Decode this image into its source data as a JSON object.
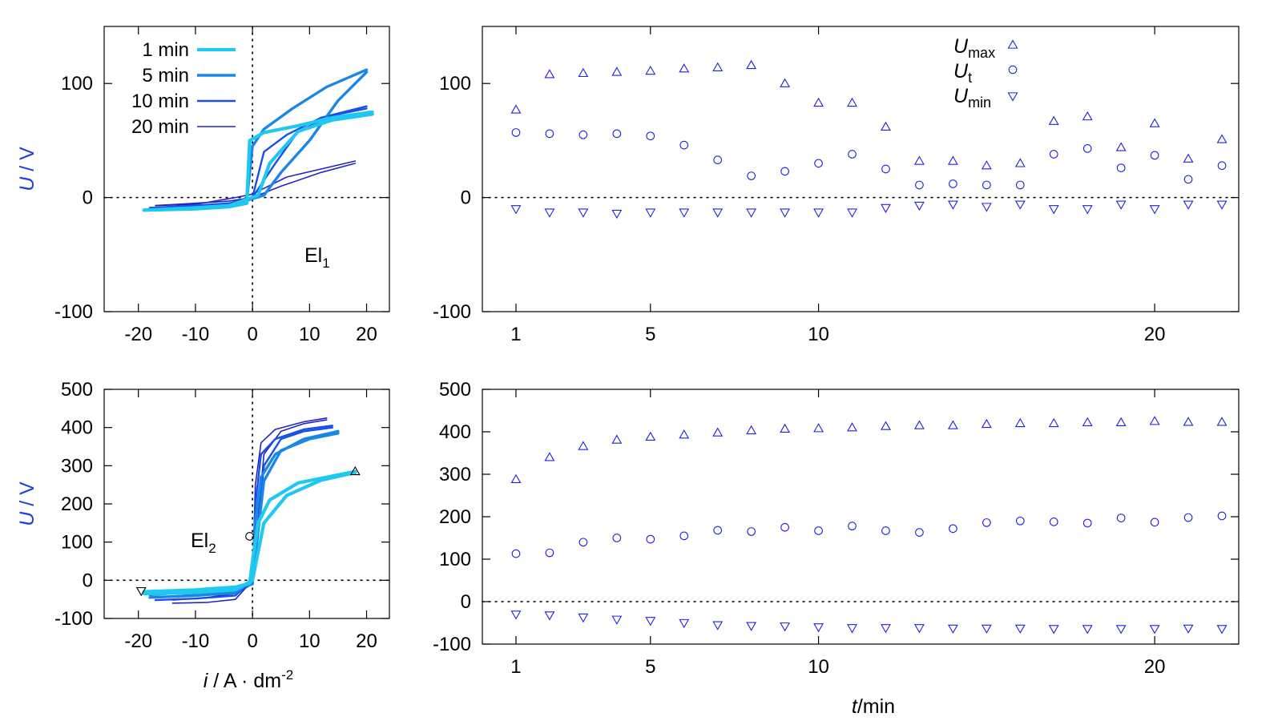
{
  "colors": {
    "c1": "#1ec8f0",
    "c5": "#1a86e8",
    "c10": "#1650e8",
    "c20": "#2424c4",
    "marker": "#2020e0",
    "ylabel": "#1f3fe0"
  },
  "labels": {
    "ylabel_u": "U",
    "ylabel_unit": " / V",
    "xlabel_i": "i",
    "xlabel_unit": " / A · dm",
    "xlabel_exp": "-2",
    "xlabel_t": "t",
    "xlabel_t_unit": "/min",
    "el1_base": "El",
    "el1_sub": "1",
    "el2_base": "El",
    "el2_sub": "2",
    "umax_base": "U",
    "umax_sub": "max",
    "ut_base": "U",
    "ut_sub": "t",
    "umin_base": "U",
    "umin_sub": "min"
  },
  "chart_data": [
    {
      "id": "el1-hysteresis",
      "type": "line",
      "xlim": [
        -26,
        24
      ],
      "ylim": [
        -100,
        150
      ],
      "xticks": [
        "-20",
        "-10",
        "0",
        "10",
        "20"
      ],
      "yticks": [
        "-100",
        "0",
        "100"
      ],
      "legend": [
        "1 min",
        "5 min",
        "10 min",
        "20 min"
      ],
      "legend_position": "top-left",
      "series": [
        {
          "name": "1 min",
          "up": [
            [
              -19,
              -11
            ],
            [
              -10,
              -10
            ],
            [
              -4,
              -8
            ],
            [
              -1,
              -5
            ],
            [
              -0.5,
              50
            ],
            [
              2,
              57
            ],
            [
              8,
              63
            ],
            [
              14,
              70
            ],
            [
              21,
              75
            ]
          ],
          "down": [
            [
              21,
              73
            ],
            [
              14,
              68
            ],
            [
              8,
              58
            ],
            [
              3,
              30
            ],
            [
              1,
              2
            ],
            [
              -4,
              -7
            ],
            [
              -10,
              -9
            ],
            [
              -19,
              -11
            ]
          ]
        },
        {
          "name": "5 min",
          "up": [
            [
              -19,
              -11
            ],
            [
              -10,
              -10
            ],
            [
              -4,
              -8
            ],
            [
              -1,
              -3
            ],
            [
              0,
              45
            ],
            [
              2,
              60
            ],
            [
              7,
              78
            ],
            [
              13,
              97
            ],
            [
              20,
              112
            ]
          ],
          "down": [
            [
              20,
              110
            ],
            [
              15,
              85
            ],
            [
              10,
              50
            ],
            [
              5,
              22
            ],
            [
              2,
              2
            ],
            [
              -4,
              -7
            ],
            [
              -10,
              -9
            ],
            [
              -19,
              -11
            ]
          ]
        },
        {
          "name": "10 min",
          "up": [
            [
              -18,
              -9
            ],
            [
              -10,
              -8
            ],
            [
              -3,
              -5
            ],
            [
              0,
              0
            ],
            [
              2,
              40
            ],
            [
              6,
              55
            ],
            [
              12,
              70
            ],
            [
              20,
              80
            ]
          ],
          "down": [
            [
              20,
              78
            ],
            [
              14,
              72
            ],
            [
              8,
              58
            ],
            [
              4,
              30
            ],
            [
              0,
              0
            ],
            [
              -4,
              -5
            ],
            [
              -10,
              -7
            ],
            [
              -18,
              -9
            ]
          ]
        },
        {
          "name": "20 min",
          "up": [
            [
              -17,
              -7
            ],
            [
              -10,
              -6
            ],
            [
              -3,
              0
            ],
            [
              0,
              3
            ],
            [
              6,
              18
            ],
            [
              12,
              25
            ],
            [
              18,
              32
            ]
          ],
          "down": [
            [
              18,
              30
            ],
            [
              12,
              22
            ],
            [
              5,
              10
            ],
            [
              0,
              0
            ],
            [
              -4,
              -3
            ],
            [
              -10,
              -5
            ],
            [
              -17,
              -7
            ]
          ]
        }
      ]
    },
    {
      "id": "el1-voltage-vs-time",
      "type": "scatter",
      "xlim": [
        0,
        22.5
      ],
      "ylim": [
        -100,
        150
      ],
      "xticks": [
        "1",
        "5",
        "10",
        "20"
      ],
      "yticks": [
        "-100",
        "0",
        "100"
      ],
      "legend": [
        "Umax",
        "Ut",
        "Umin"
      ],
      "legend_position": "top-center",
      "x": [
        1,
        2,
        3,
        4,
        5,
        6,
        7,
        8,
        9,
        10,
        11,
        12,
        13,
        14,
        15,
        16,
        17,
        18,
        19,
        20,
        21,
        22
      ],
      "series": [
        {
          "name": "Umax",
          "values": [
            77,
            108,
            109,
            110,
            111,
            113,
            114,
            116,
            100,
            83,
            83,
            62,
            32,
            32,
            28,
            30,
            67,
            71,
            44,
            65,
            34,
            51
          ]
        },
        {
          "name": "Ut",
          "values": [
            57,
            56,
            55,
            56,
            54,
            46,
            33,
            19,
            23,
            30,
            38,
            25,
            11,
            12,
            11,
            11,
            38,
            43,
            26,
            37,
            16,
            28
          ]
        },
        {
          "name": "Umin",
          "values": [
            -10,
            -13,
            -13,
            -14,
            -13,
            -13,
            -13,
            -13,
            -13,
            -13,
            -13,
            -9,
            -7,
            -6,
            -8,
            -6,
            -10,
            -10,
            -6,
            -10,
            -6,
            -6
          ]
        }
      ]
    },
    {
      "id": "el2-hysteresis",
      "type": "line",
      "xlim": [
        -26,
        24
      ],
      "ylim": [
        -100,
        500
      ],
      "xticks": [
        "-20",
        "-10",
        "0",
        "10",
        "20"
      ],
      "yticks": [
        "-100",
        "0",
        "100",
        "200",
        "300",
        "400",
        "500"
      ],
      "series": [
        {
          "name": "1 min",
          "up": [
            [
              -19,
              -30
            ],
            [
              -10,
              -25
            ],
            [
              -3,
              -18
            ],
            [
              -0.5,
              -8
            ],
            [
              0,
              50
            ],
            [
              1,
              150
            ],
            [
              3,
              210
            ],
            [
              8,
              255
            ],
            [
              18,
              285
            ]
          ],
          "down": [
            [
              18,
              282
            ],
            [
              12,
              262
            ],
            [
              6,
              222
            ],
            [
              2,
              150
            ],
            [
              0,
              0
            ],
            [
              -3,
              -25
            ],
            [
              -10,
              -32
            ],
            [
              -19,
              -35
            ]
          ]
        },
        {
          "name": "5 min",
          "up": [
            [
              -18,
              -38
            ],
            [
              -10,
              -30
            ],
            [
              -3,
              -22
            ],
            [
              0,
              -10
            ],
            [
              0.5,
              150
            ],
            [
              1.5,
              270
            ],
            [
              4,
              330
            ],
            [
              9,
              370
            ],
            [
              15,
              390
            ]
          ],
          "down": [
            [
              15,
              385
            ],
            [
              10,
              370
            ],
            [
              5,
              340
            ],
            [
              2,
              260
            ],
            [
              0,
              0
            ],
            [
              -3,
              -33
            ],
            [
              -10,
              -40
            ],
            [
              -18,
              -45
            ]
          ]
        },
        {
          "name": "10 min",
          "up": [
            [
              -17,
              -45
            ],
            [
              -10,
              -38
            ],
            [
              -3,
              -28
            ],
            [
              0,
              -10
            ],
            [
              0.5,
              200
            ],
            [
              1.5,
              330
            ],
            [
              4,
              370
            ],
            [
              9,
              395
            ],
            [
              14,
              405
            ]
          ],
          "down": [
            [
              14,
              400
            ],
            [
              9,
              390
            ],
            [
              5,
              370
            ],
            [
              2,
              300
            ],
            [
              0,
              0
            ],
            [
              -3,
              -40
            ],
            [
              -10,
              -48
            ],
            [
              -17,
              -52
            ]
          ]
        },
        {
          "name": "20 min",
          "up": [
            [
              -14,
              -52
            ],
            [
              -8,
              -45
            ],
            [
              -3,
              -35
            ],
            [
              0,
              -10
            ],
            [
              0.5,
              250
            ],
            [
              1.5,
              360
            ],
            [
              4,
              395
            ],
            [
              9,
              415
            ],
            [
              13,
              425
            ]
          ],
          "down": [
            [
              13,
              420
            ],
            [
              9,
              410
            ],
            [
              5,
              390
            ],
            [
              2,
              330
            ],
            [
              0,
              0
            ],
            [
              -3,
              -50
            ],
            [
              -8,
              -58
            ],
            [
              -14,
              -60
            ]
          ]
        }
      ],
      "markers": [
        {
          "shape": "triangle-up",
          "x": 18,
          "y": 285
        },
        {
          "shape": "circle",
          "x": -0.5,
          "y": 115
        },
        {
          "shape": "triangle-down",
          "x": -19.5,
          "y": -28
        }
      ]
    },
    {
      "id": "el2-voltage-vs-time",
      "type": "scatter",
      "xlim": [
        0,
        22.5
      ],
      "ylim": [
        -100,
        500
      ],
      "xticks": [
        "1",
        "5",
        "10",
        "20"
      ],
      "yticks": [
        "-100",
        "0",
        "100",
        "200",
        "300",
        "400",
        "500"
      ],
      "xlabel": "t/min",
      "x": [
        1,
        2,
        3,
        4,
        5,
        6,
        7,
        8,
        9,
        10,
        11,
        12,
        13,
        14,
        15,
        16,
        17,
        18,
        19,
        20,
        21,
        22
      ],
      "series": [
        {
          "name": "Umax",
          "values": [
            288,
            340,
            366,
            381,
            388,
            393,
            398,
            403,
            407,
            408,
            410,
            413,
            415,
            415,
            418,
            420,
            420,
            422,
            422,
            425,
            423,
            423
          ]
        },
        {
          "name": "Ut",
          "values": [
            113,
            115,
            140,
            150,
            147,
            155,
            168,
            165,
            175,
            167,
            178,
            167,
            163,
            172,
            186,
            190,
            188,
            185,
            197,
            187,
            198,
            202
          ]
        },
        {
          "name": "Umin",
          "values": [
            -30,
            -32,
            -37,
            -42,
            -45,
            -50,
            -55,
            -57,
            -58,
            -60,
            -62,
            -62,
            -62,
            -63,
            -63,
            -63,
            -64,
            -64,
            -64,
            -64,
            -63,
            -64
          ]
        }
      ]
    }
  ]
}
